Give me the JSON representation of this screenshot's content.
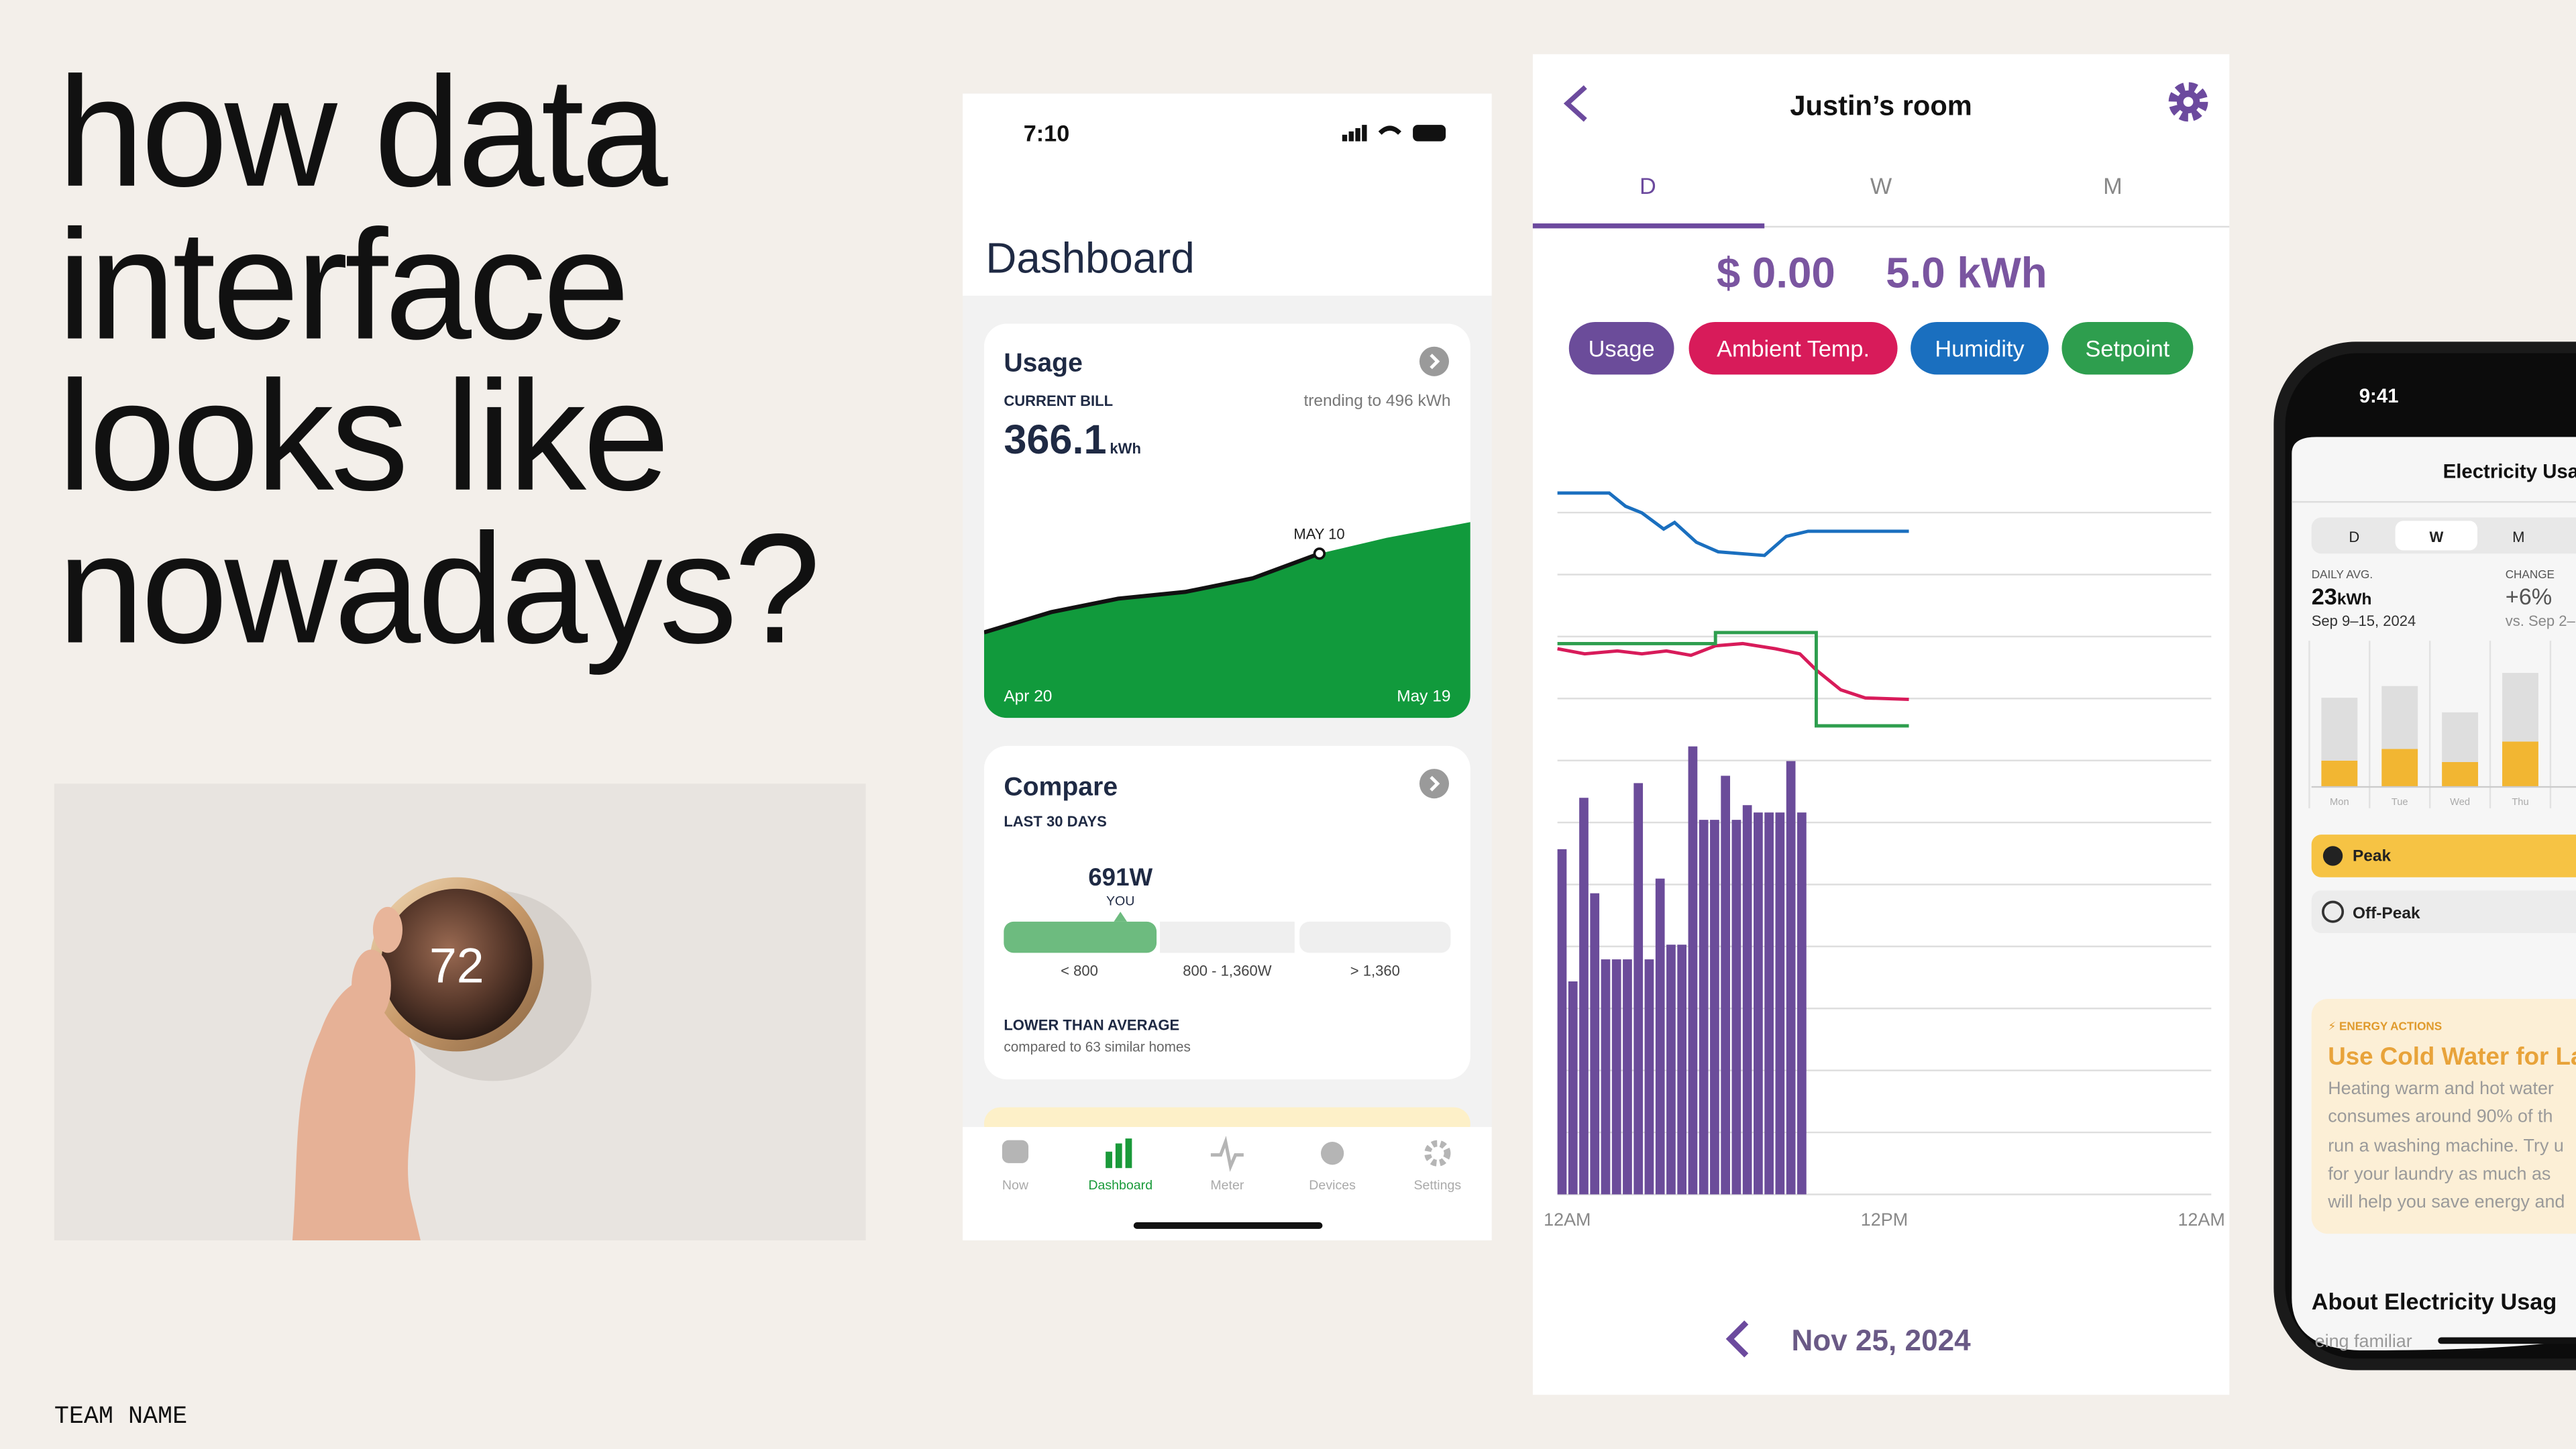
{
  "slide": {
    "headline": [
      "how data",
      "interface",
      "looks like",
      "nowadays?"
    ],
    "footer": "TEAM NAME",
    "thermostat_reading": "72"
  },
  "dashboard_app": {
    "status_time": "7:10",
    "title": "Dashboard",
    "usage": {
      "title": "Usage",
      "label": "CURRENT BILL",
      "trend": "trending to 496 kWh",
      "value": "366.1",
      "unit": "kWh",
      "marker": "MAY 10",
      "start_label": "Apr 20",
      "end_label": "May 19"
    },
    "compare": {
      "title": "Compare",
      "label": "LAST 30 DAYS",
      "value": "691W",
      "value_caption": "YOU",
      "ranges": [
        "< 800",
        "800 - 1,360W",
        "> 1,360"
      ],
      "summary": "LOWER THAN AVERAGE",
      "note": "compared to 63 similar homes"
    },
    "tabs": [
      "Now",
      "Dashboard",
      "Meter",
      "Devices",
      "Settings"
    ]
  },
  "room_app": {
    "title": "Justin’s room",
    "periods": [
      "D",
      "W",
      "M"
    ],
    "cost": "$ 0.00",
    "energy": "5.0 kWh",
    "date": "Nov 25, 2024"
  },
  "usage_app": {
    "status_time": "9:41",
    "title": "Electricity Usa",
    "periods": [
      "D",
      "W",
      "M"
    ],
    "daily_avg_label": "DAILY AVG.",
    "daily_avg_value": "23",
    "daily_avg_unit": "kWh",
    "daily_avg_range": "Sep 9–15, 2024",
    "change_label": "CHANGE",
    "change_value": "+6%",
    "change_range": "vs. Sep 2–",
    "action_tag": "ENERGY ACTIONS",
    "action_title": "Use Cold Water for La",
    "action_body": [
      "Heating warm and hot water",
      "consumes around 90% of th",
      "run a washing machine. Try u",
      "for your laundry as much as",
      "will help you save energy and"
    ],
    "section_title": "About Electricity Usag",
    "section_body": "eing familiar"
  },
  "chart_data": [
    {
      "type": "area",
      "x": [
        0,
        4,
        8,
        12,
        16,
        20,
        24,
        29
      ],
      "xlim": [
        0,
        29
      ],
      "ylim": [
        0,
        100
      ],
      "series": [
        {
          "color": "#119a3c",
          "values": [
            38,
            47,
            53,
            56,
            62,
            73,
            80,
            87
          ]
        },
        {
          "color": "#111111",
          "values": [
            38,
            47,
            53,
            56,
            62,
            73,
            null,
            null
          ]
        }
      ]
    },
    {
      "type": "combo",
      "xlim": [
        0,
        24
      ],
      "ylim": [
        0,
        100
      ],
      "grid": true,
      "xticks": [
        {
          "value": 0,
          "label": "12AM"
        },
        {
          "value": 12,
          "label": "12PM"
        },
        {
          "value": 24,
          "label": "12AM"
        }
      ],
      "series": [
        {
          "name": "Usage",
          "type": "bar",
          "color": "#6b4c9a",
          "x": [
            0,
            0.4,
            0.8,
            1.2,
            1.6,
            2,
            2.4,
            2.8,
            3.2,
            3.6,
            4,
            4.4,
            4.8,
            5.2,
            5.6,
            6,
            6.4,
            6.8,
            7.2,
            7.6,
            8,
            8.4,
            8.8
          ],
          "values": [
            47,
            29,
            54,
            41,
            32,
            32,
            32,
            56,
            32,
            43,
            34,
            34,
            61,
            51,
            51,
            57,
            51,
            53,
            52,
            52,
            52,
            59,
            52
          ]
        },
        {
          "name": "Ambient Temp.",
          "type": "line",
          "color": "#d81b5a",
          "x": [
            0,
            1,
            2.2,
            3.1,
            4,
            4.9,
            5.8,
            6.8,
            8,
            8.9,
            9.5,
            10.4,
            11.3,
            12.9
          ],
          "values": [
            74.3,
            73.6,
            74,
            73.6,
            74,
            73.4,
            74.7,
            75,
            74.3,
            73.6,
            71.4,
            68.7,
            67.6,
            67.4
          ]
        },
        {
          "name": "Humidity",
          "type": "line",
          "color": "#1a6fbf",
          "x": [
            0,
            1.9,
            2.5,
            3.1,
            3.9,
            4.3,
            5.1,
            5.9,
            6.9,
            7.6,
            8.4,
            9.2,
            12.9
          ],
          "values": [
            95.5,
            95.5,
            93.7,
            92.8,
            90.6,
            91.5,
            88.8,
            87.5,
            87.2,
            87,
            89.6,
            90.3,
            90.3
          ]
        },
        {
          "name": "Setpoint",
          "type": "line",
          "color": "#2e9e4e",
          "x": [
            0,
            5.8,
            5.8,
            9.5,
            9.5,
            12.9
          ],
          "values": [
            75,
            75,
            76.5,
            76.5,
            63.8,
            63.8
          ]
        }
      ]
    },
    {
      "type": "bar",
      "stacked": true,
      "categories": [
        "Mon",
        "Tue",
        "Wed",
        "Thu"
      ],
      "ylim": [
        0,
        100
      ],
      "series": [
        {
          "name": "Peak",
          "color": "#f2b632",
          "values": [
            18,
            26,
            17,
            31
          ]
        },
        {
          "name": "Off-Peak",
          "color": "#dedede",
          "values": [
            43,
            43,
            34,
            47
          ]
        }
      ]
    }
  ]
}
